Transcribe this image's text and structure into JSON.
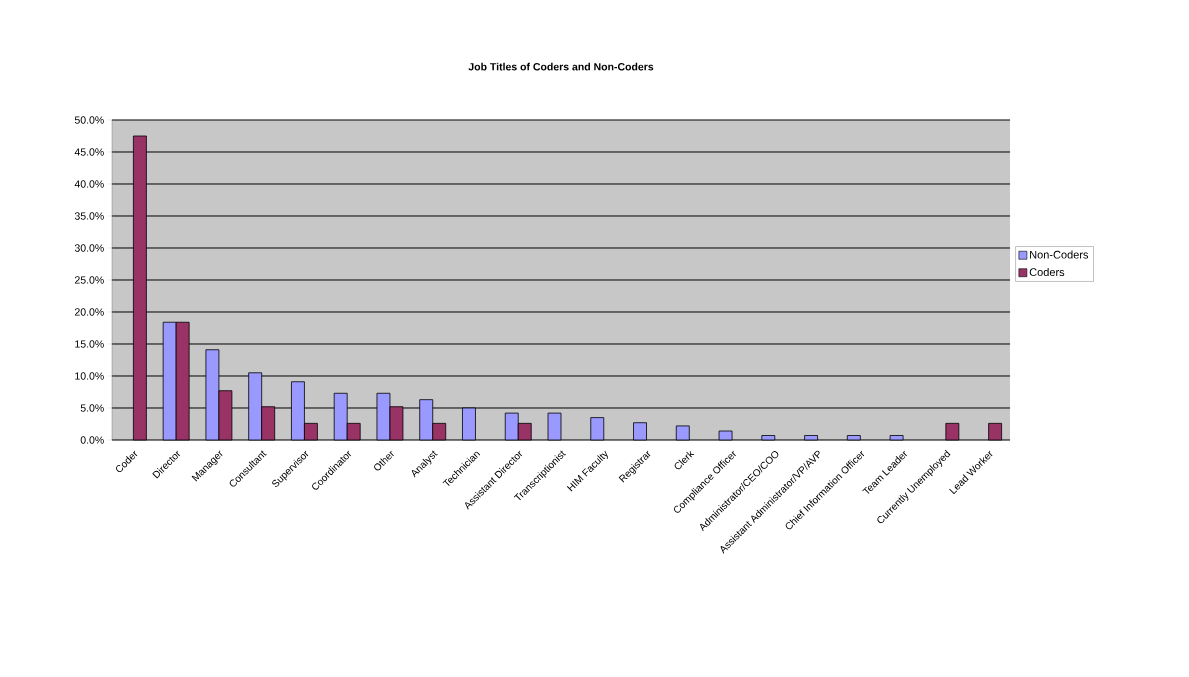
{
  "chart_data": {
    "type": "bar",
    "title": "Job Titles of Coders and Non-Coders",
    "categories": [
      "Coder",
      "Director",
      "Manager",
      "Consultant",
      "Supervisor",
      "Coordinator",
      "Other",
      "Analyst",
      "Technician",
      "Assistant Director",
      "Transcriptionist",
      "HIM Faculty",
      "Registrar",
      "Clerk",
      "Compliance Officer",
      "Administrator/CEO/COO",
      "Assistant Administrator/VP/AVP",
      "Chief Information Officer",
      "Team Leader",
      "Currently Unemployed",
      "Lead Worker"
    ],
    "series": [
      {
        "name": "Non-Coders",
        "color": "#9999ff",
        "values": [
          null,
          18.4,
          14.1,
          10.5,
          9.1,
          7.3,
          7.3,
          6.3,
          5.0,
          4.2,
          4.2,
          3.5,
          2.7,
          2.2,
          1.4,
          0.7,
          0.7,
          0.7,
          0.7,
          null,
          null
        ]
      },
      {
        "name": "Coders",
        "color": "#993366",
        "values": [
          47.5,
          18.4,
          7.7,
          5.2,
          2.6,
          2.6,
          5.2,
          2.6,
          null,
          2.6,
          null,
          null,
          null,
          null,
          null,
          null,
          null,
          null,
          null,
          2.6,
          2.6
        ]
      }
    ],
    "ylim": [
      0,
      50
    ],
    "yticks": [
      {
        "value": 0,
        "label": "0.0%"
      },
      {
        "value": 5,
        "label": "5.0%"
      },
      {
        "value": 10,
        "label": "10.0%"
      },
      {
        "value": 15,
        "label": "15.0%"
      },
      {
        "value": 20,
        "label": "20.0%"
      },
      {
        "value": 25,
        "label": "25.0%"
      },
      {
        "value": 30,
        "label": "30.0%"
      },
      {
        "value": 35,
        "label": "35.0%"
      },
      {
        "value": 40,
        "label": "40.0%"
      },
      {
        "value": 45,
        "label": "45.0%"
      },
      {
        "value": 50,
        "label": "50.0%"
      }
    ],
    "grid": "y",
    "legend": "right"
  }
}
